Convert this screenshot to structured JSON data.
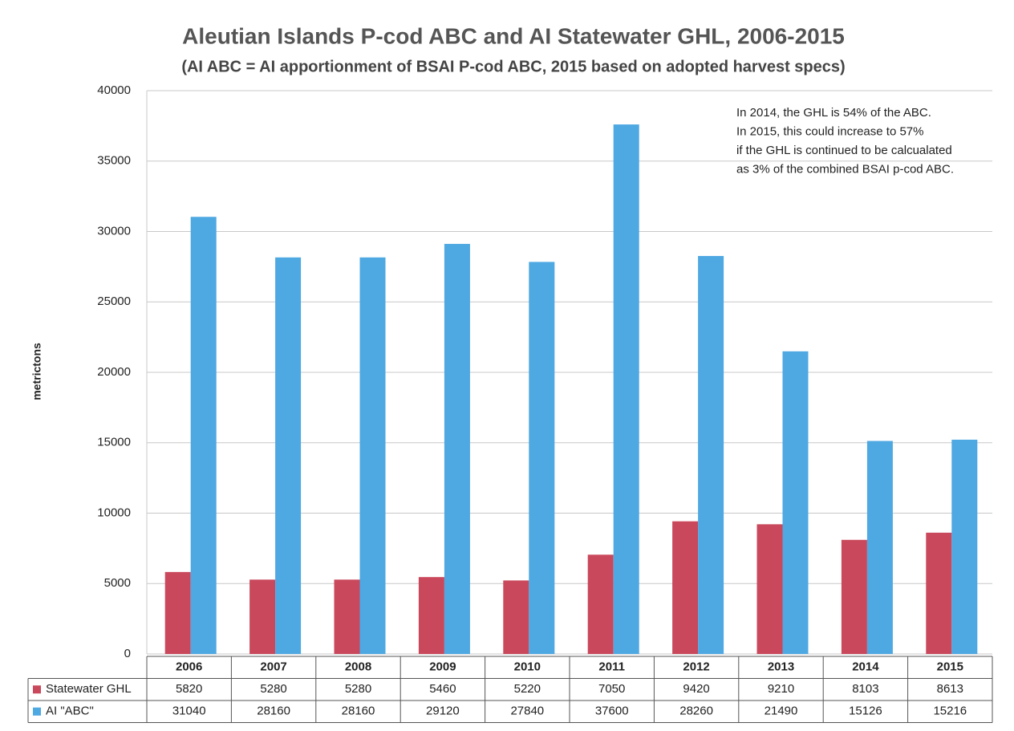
{
  "chart_data": {
    "type": "bar",
    "title": "Aleutian Islands P-cod ABC and AI Statewater GHL, 2006-2015",
    "subtitle": "(AI ABC = AI apportionment of BSAI P-cod ABC, 2015 based on adopted harvest specs)",
    "y_label": "metrictons",
    "annotation": [
      "In 2014, the GHL is  54% of the ABC.",
      "In 2015, this could increase to 57%",
      "if the GHL is continued to be calcualated",
      "as 3% of the combined BSAI p-cod ABC."
    ],
    "categories": [
      "2006",
      "2007",
      "2008",
      "2009",
      "2010",
      "2011",
      "2012",
      "2013",
      "2014",
      "2015"
    ],
    "series": [
      {
        "name": "Statewater GHL",
        "color": "#c9485b",
        "values": [
          5820,
          5280,
          5280,
          5460,
          5220,
          7050,
          9420,
          9210,
          8103,
          8613
        ]
      },
      {
        "name": "AI \"ABC\"",
        "color": "#4ea8e2",
        "values": [
          31040,
          28160,
          28160,
          29120,
          27840,
          37600,
          28260,
          21490,
          15126,
          15216
        ]
      }
    ],
    "ylim": [
      0,
      40000
    ],
    "yticks": [
      0,
      5000,
      10000,
      15000,
      20000,
      25000,
      30000,
      35000,
      40000
    ],
    "grid": true
  }
}
